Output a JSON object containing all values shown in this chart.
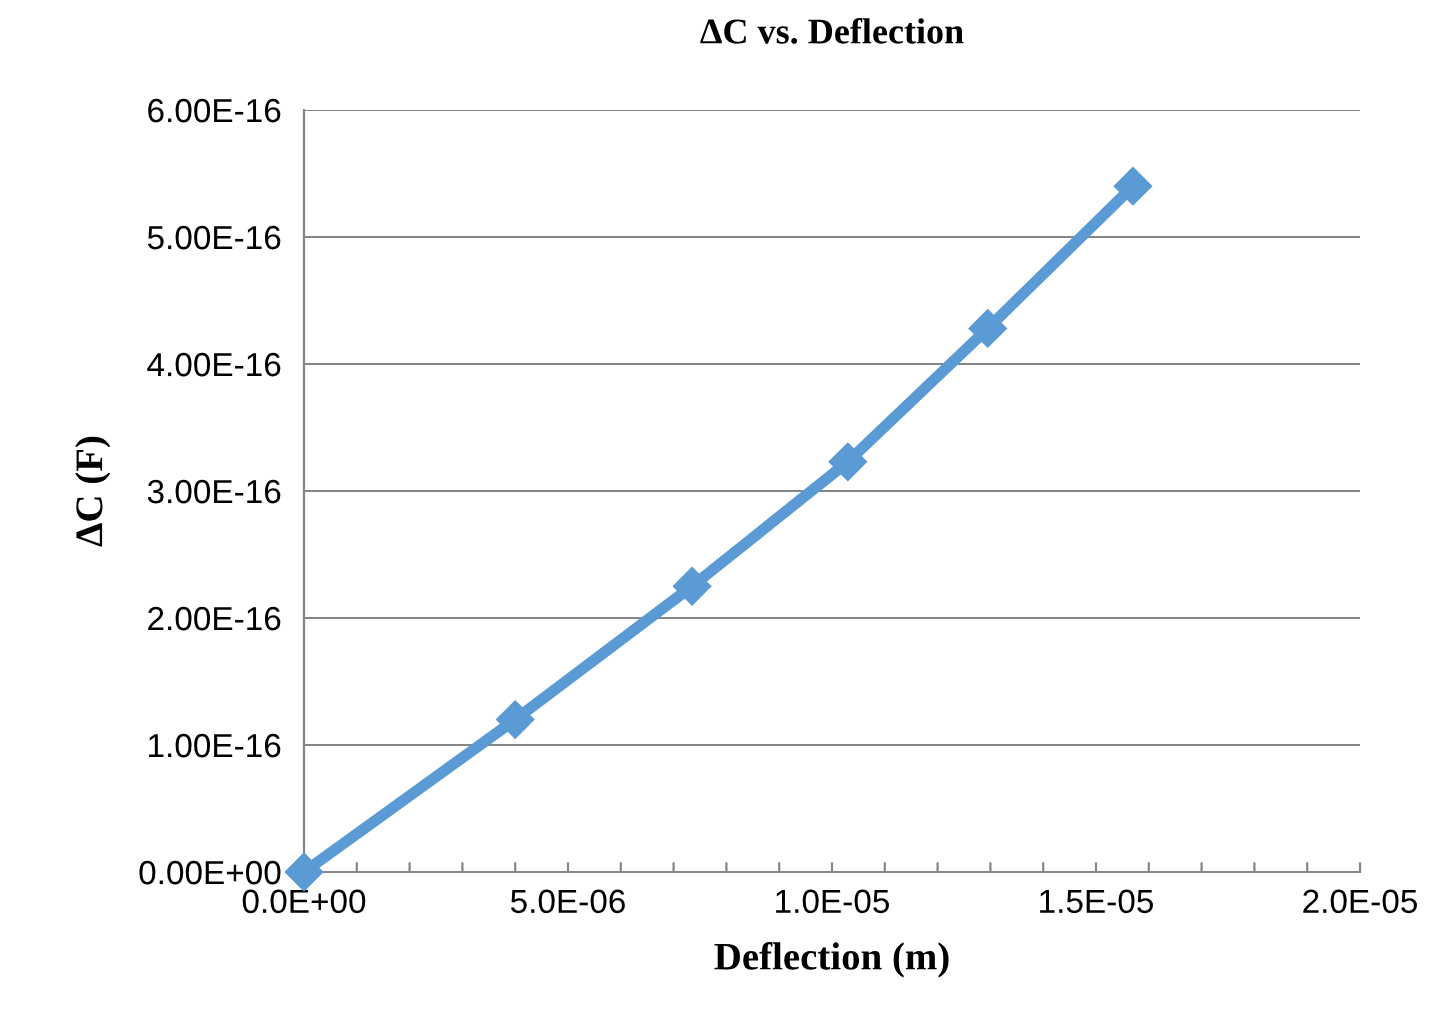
{
  "chart_data": {
    "type": "line",
    "title": "ΔC vs. Deflection",
    "xlabel": "Deflection (m)",
    "ylabel": "ΔC (F)",
    "x": [
      0,
      4e-06,
      7.35e-06,
      1.03e-05,
      1.295e-05,
      1.57e-05
    ],
    "series": [
      {
        "color": "#5b9bd5",
        "values": [
          0,
          1.2e-16,
          2.25e-16,
          3.23e-16,
          4.28e-16,
          5.4e-16
        ]
      }
    ],
    "xlim": [
      0,
      2e-05
    ],
    "xticks": [
      {
        "value": 0,
        "label": "0.0E+00"
      },
      {
        "value": 1e-06,
        "label": null
      },
      {
        "value": 2e-06,
        "label": null
      },
      {
        "value": 3e-06,
        "label": null
      },
      {
        "value": 4e-06,
        "label": null
      },
      {
        "value": 5e-06,
        "label": "5.0E-06"
      },
      {
        "value": 6e-06,
        "label": null
      },
      {
        "value": 7e-06,
        "label": null
      },
      {
        "value": 8e-06,
        "label": null
      },
      {
        "value": 9e-06,
        "label": null
      },
      {
        "value": 1e-05,
        "label": "1.0E-05"
      },
      {
        "value": 1.1e-05,
        "label": null
      },
      {
        "value": 1.2e-05,
        "label": null
      },
      {
        "value": 1.3e-05,
        "label": null
      },
      {
        "value": 1.4e-05,
        "label": null
      },
      {
        "value": 1.5e-05,
        "label": "1.5E-05"
      },
      {
        "value": 1.6e-05,
        "label": null
      },
      {
        "value": 1.7e-05,
        "label": null
      },
      {
        "value": 1.8e-05,
        "label": null
      },
      {
        "value": 1.9e-05,
        "label": null
      },
      {
        "value": 2e-05,
        "label": "2.0E-05"
      }
    ],
    "ylim": [
      0,
      6e-16
    ],
    "yticks": [
      {
        "value": 0,
        "label": "0.00E+00"
      },
      {
        "value": 1e-16,
        "label": "1.00E-16"
      },
      {
        "value": 2e-16,
        "label": "2.00E-16"
      },
      {
        "value": 3e-16,
        "label": "3.00E-16"
      },
      {
        "value": 4e-16,
        "label": "4.00E-16"
      },
      {
        "value": 5e-16,
        "label": "5.00E-16"
      },
      {
        "value": 6e-16,
        "label": "6.00E-16"
      }
    ],
    "grid": "y",
    "marker": "diamond",
    "line_style": "solid"
  }
}
